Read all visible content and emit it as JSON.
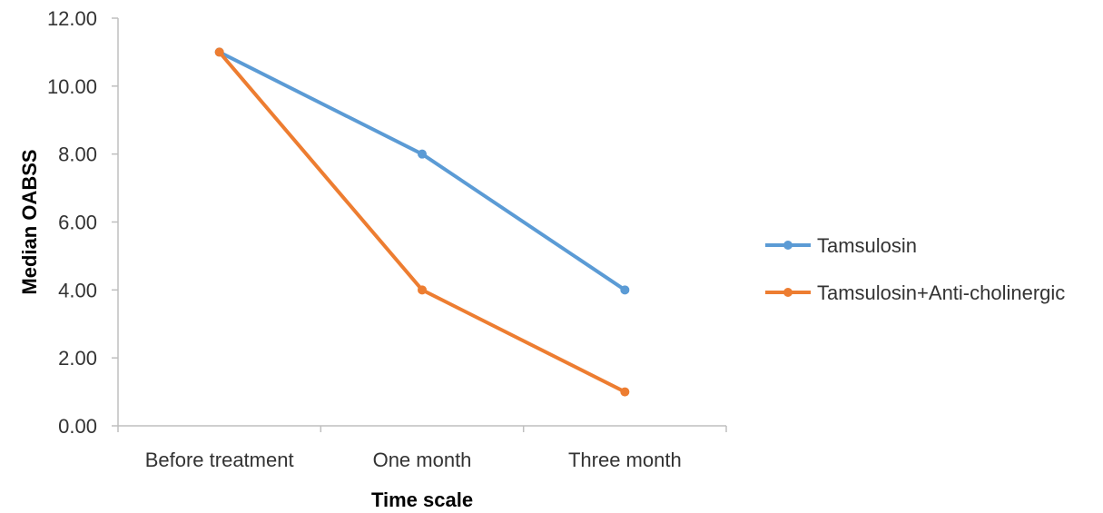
{
  "chart_data": {
    "type": "line",
    "title": "",
    "xlabel": "Time scale",
    "ylabel": "Median OABSS",
    "categories": [
      "Before treatment",
      "One month",
      "Three month"
    ],
    "ylim": [
      0,
      12
    ],
    "yticks": [
      "0.00",
      "2.00",
      "4.00",
      "6.00",
      "8.00",
      "10.00",
      "12.00"
    ],
    "grid": false,
    "legend_position": "right",
    "series": [
      {
        "name": "Tamsulosin",
        "color": "#5b9bd5",
        "values": [
          11,
          8,
          4
        ]
      },
      {
        "name": "Tamsulosin+Anti-cholinergic",
        "color": "#ed7d31",
        "values": [
          11,
          4,
          1
        ]
      }
    ]
  }
}
